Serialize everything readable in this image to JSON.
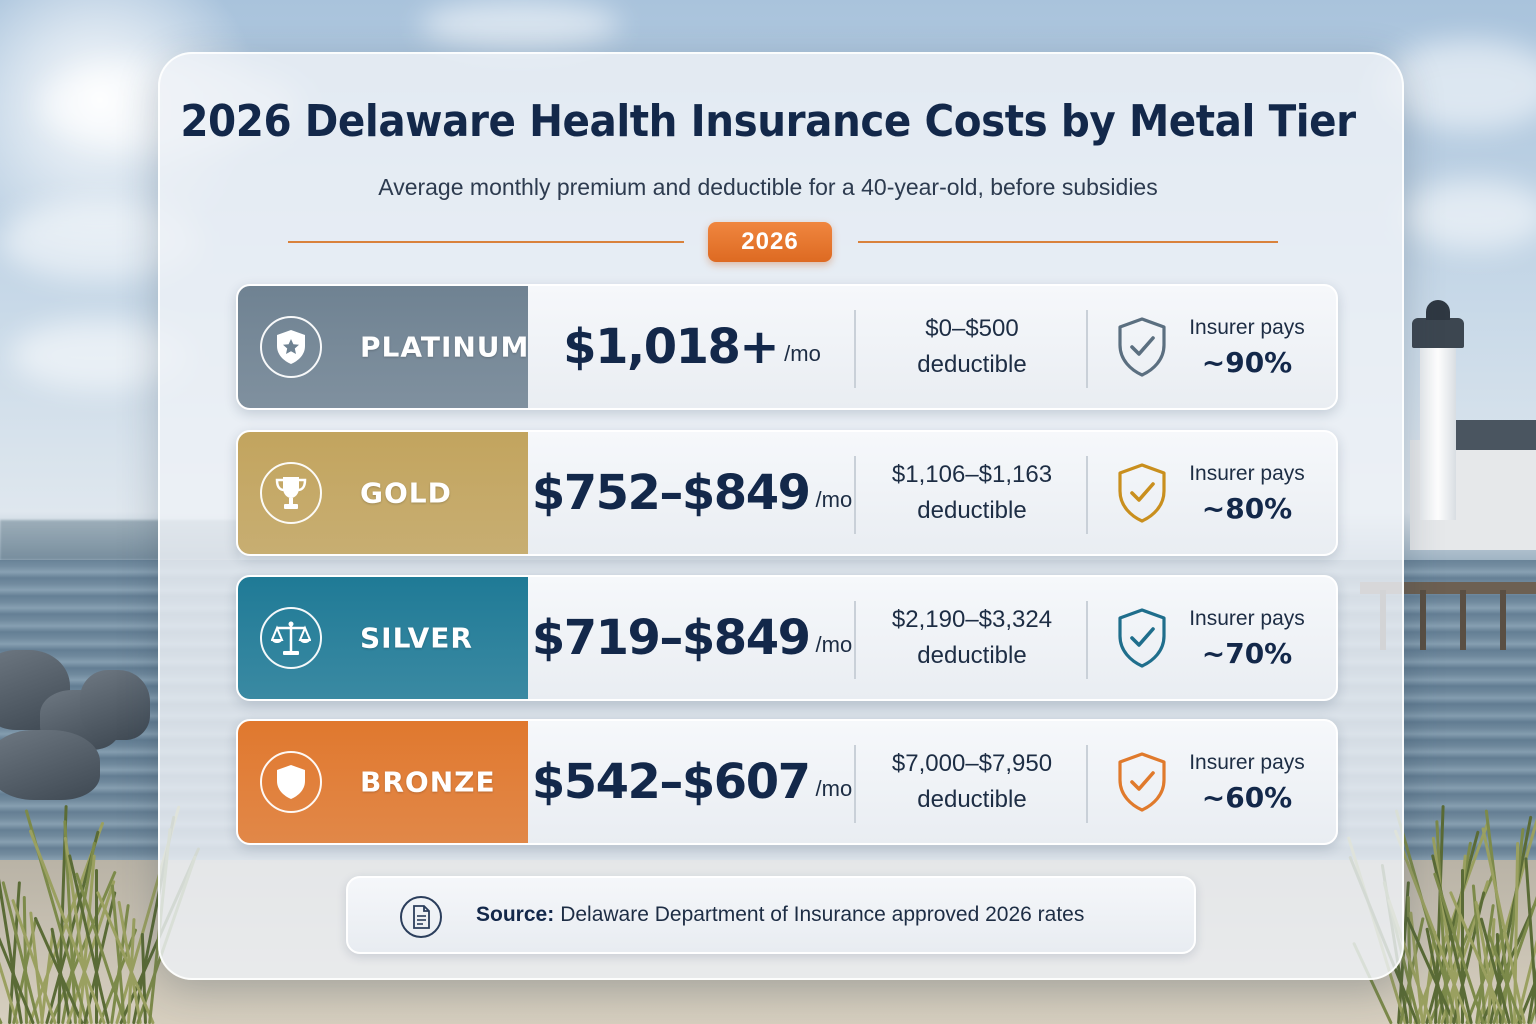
{
  "header": {
    "title": "2026 Delaware Health Insurance Costs by Metal Tier",
    "subtitle": "Average monthly premium and deductible for a 40-year-old, before subsidies",
    "year_badge": "2026"
  },
  "tiers": [
    {
      "name": "PLATINUM",
      "icon": "shield-star-icon",
      "color": "#6f8292",
      "premium": "$1,018+",
      "per": "/mo",
      "deductible": "$0–$500",
      "deductible_label": "deductible",
      "check_color": "#5b6f80",
      "pays_label": "Insurer pays",
      "pays_pct": "~90%"
    },
    {
      "name": "GOLD",
      "icon": "trophy-icon",
      "color": "#c2a45e",
      "premium": "$752–$849",
      "per": "/mo",
      "deductible": "$1,106–$1,163",
      "deductible_label": "deductible",
      "check_color": "#c98f1e",
      "pays_label": "Insurer pays",
      "pays_pct": "~80%"
    },
    {
      "name": "SILVER",
      "icon": "scales-icon",
      "color": "#1f7a96",
      "premium": "$719–$849",
      "per": "/mo",
      "deductible": "$2,190–$3,324",
      "deductible_label": "deductible",
      "check_color": "#1f6e8c",
      "pays_label": "Insurer pays",
      "pays_pct": "~70%"
    },
    {
      "name": "BRONZE",
      "icon": "shield-icon",
      "color": "#e0782e",
      "premium": "$542–$607",
      "per": "/mo",
      "deductible": "$7,000–$7,950",
      "deductible_label": "deductible",
      "check_color": "#e07a2c",
      "pays_label": "Insurer pays",
      "pays_pct": "~60%"
    }
  ],
  "source": {
    "label": "Source:",
    "text": "Delaware Department of Insurance approved 2026 rates",
    "icon": "document-icon"
  }
}
